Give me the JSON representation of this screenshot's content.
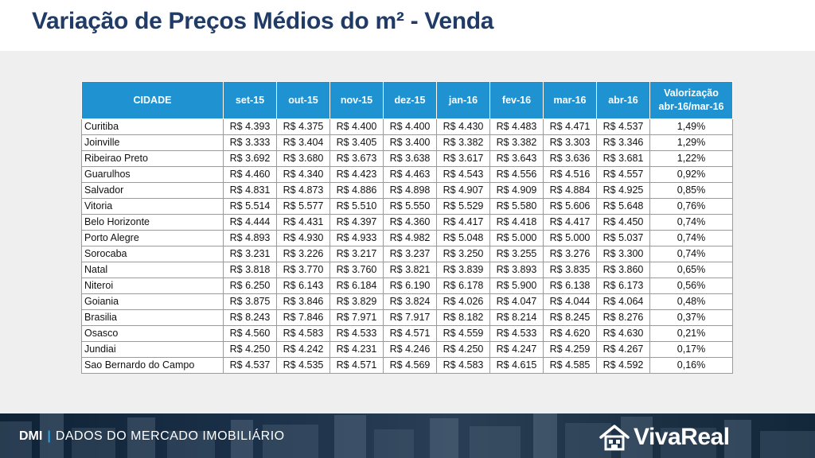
{
  "title": "Variação de Preços Médios do m² - Venda",
  "table": {
    "columns": [
      "CIDADE",
      "set-15",
      "out-15",
      "nov-15",
      "dez-15",
      "jan-16",
      "fev-16",
      "mar-16",
      "abr-16"
    ],
    "valorization_header": [
      "Valorização",
      "abr-16/mar-16"
    ],
    "rows": [
      [
        "Curitiba",
        "R$ 4.393",
        "R$ 4.375",
        "R$ 4.400",
        "R$ 4.400",
        "R$ 4.430",
        "R$ 4.483",
        "R$ 4.471",
        "R$ 4.537",
        "1,49%"
      ],
      [
        "Joinville",
        "R$ 3.333",
        "R$ 3.404",
        "R$ 3.405",
        "R$ 3.400",
        "R$ 3.382",
        "R$ 3.382",
        "R$ 3.303",
        "R$ 3.346",
        "1,29%"
      ],
      [
        "Ribeirao Preto",
        "R$ 3.692",
        "R$ 3.680",
        "R$ 3.673",
        "R$ 3.638",
        "R$ 3.617",
        "R$ 3.643",
        "R$ 3.636",
        "R$ 3.681",
        "1,22%"
      ],
      [
        "Guarulhos",
        "R$ 4.460",
        "R$ 4.340",
        "R$ 4.423",
        "R$ 4.463",
        "R$ 4.543",
        "R$ 4.556",
        "R$ 4.516",
        "R$ 4.557",
        "0,92%"
      ],
      [
        "Salvador",
        "R$ 4.831",
        "R$ 4.873",
        "R$ 4.886",
        "R$ 4.898",
        "R$ 4.907",
        "R$ 4.909",
        "R$ 4.884",
        "R$ 4.925",
        "0,85%"
      ],
      [
        "Vitoria",
        "R$ 5.514",
        "R$ 5.577",
        "R$ 5.510",
        "R$ 5.550",
        "R$ 5.529",
        "R$ 5.580",
        "R$ 5.606",
        "R$ 5.648",
        "0,76%"
      ],
      [
        "Belo Horizonte",
        "R$ 4.444",
        "R$ 4.431",
        "R$ 4.397",
        "R$ 4.360",
        "R$ 4.417",
        "R$ 4.418",
        "R$ 4.417",
        "R$ 4.450",
        "0,74%"
      ],
      [
        "Porto Alegre",
        "R$ 4.893",
        "R$ 4.930",
        "R$ 4.933",
        "R$ 4.982",
        "R$ 5.048",
        "R$ 5.000",
        "R$ 5.000",
        "R$ 5.037",
        "0,74%"
      ],
      [
        "Sorocaba",
        "R$ 3.231",
        "R$ 3.226",
        "R$ 3.217",
        "R$ 3.237",
        "R$ 3.250",
        "R$ 3.255",
        "R$ 3.276",
        "R$ 3.300",
        "0,74%"
      ],
      [
        "Natal",
        "R$ 3.818",
        "R$ 3.770",
        "R$ 3.760",
        "R$ 3.821",
        "R$ 3.839",
        "R$ 3.893",
        "R$ 3.835",
        "R$ 3.860",
        "0,65%"
      ],
      [
        "Niteroi",
        "R$ 6.250",
        "R$ 6.143",
        "R$ 6.184",
        "R$ 6.190",
        "R$ 6.178",
        "R$ 5.900",
        "R$ 6.138",
        "R$ 6.173",
        "0,56%"
      ],
      [
        "Goiania",
        "R$ 3.875",
        "R$ 3.846",
        "R$ 3.829",
        "R$ 3.824",
        "R$ 4.026",
        "R$ 4.047",
        "R$ 4.044",
        "R$ 4.064",
        "0,48%"
      ],
      [
        "Brasilia",
        "R$ 8.243",
        "R$ 7.846",
        "R$ 7.971",
        "R$ 7.917",
        "R$ 8.182",
        "R$ 8.214",
        "R$ 8.245",
        "R$ 8.276",
        "0,37%"
      ],
      [
        "Osasco",
        "R$ 4.560",
        "R$ 4.583",
        "R$ 4.533",
        "R$ 4.571",
        "R$ 4.559",
        "R$ 4.533",
        "R$ 4.620",
        "R$ 4.630",
        "0,21%"
      ],
      [
        "Jundiai",
        "R$ 4.250",
        "R$ 4.242",
        "R$ 4.231",
        "R$ 4.246",
        "R$ 4.250",
        "R$ 4.247",
        "R$ 4.259",
        "R$ 4.267",
        "0,17%"
      ],
      [
        "Sao Bernardo do Campo",
        "R$ 4.537",
        "R$ 4.535",
        "R$ 4.571",
        "R$ 4.569",
        "R$ 4.583",
        "R$ 4.615",
        "R$ 4.585",
        "R$ 4.592",
        "0,16%"
      ]
    ]
  },
  "footer": {
    "brand": "DMI",
    "separator": "|",
    "tagline": "DADOS DO MERCADO IMOBILIÁRIO",
    "logo_text": "VivaReal",
    "logo_icon": "house-icon"
  },
  "colors": {
    "title": "#1f3b66",
    "header_bg": "#1f93d2",
    "panel_bg": "#efefef",
    "footer_bg": "#1a3048",
    "accent": "#2aa3e0"
  }
}
